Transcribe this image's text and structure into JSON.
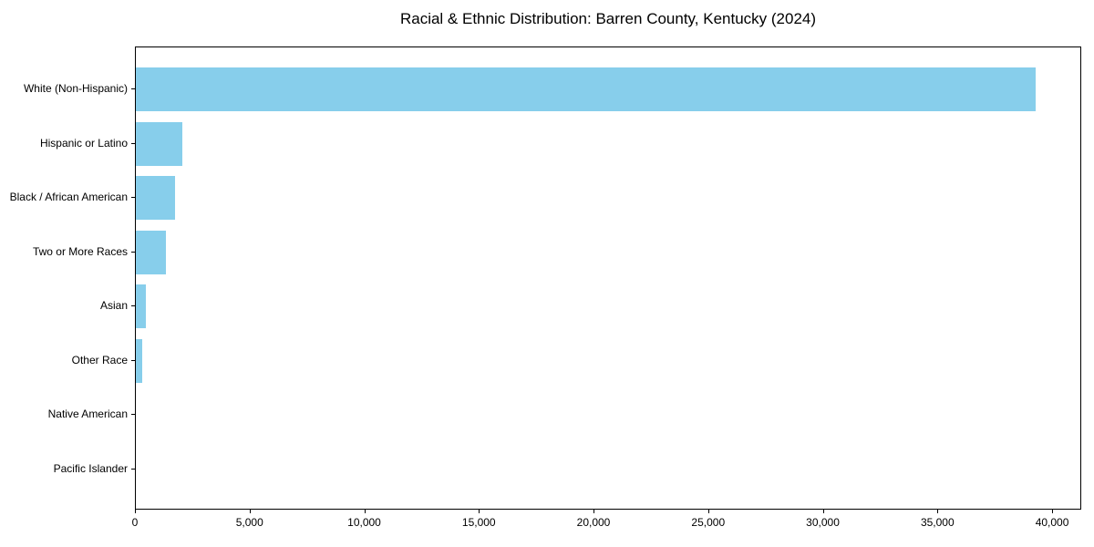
{
  "chart_data": {
    "type": "bar",
    "orientation": "horizontal",
    "title": "Racial & Ethnic Distribution: Barren County, Kentucky (2024)",
    "categories": [
      "White (Non-Hispanic)",
      "Hispanic or Latino",
      "Black / African American",
      "Two or More Races",
      "Asian",
      "Other Race",
      "Native American",
      "Pacific Islander"
    ],
    "values": [
      39250,
      2020,
      1720,
      1310,
      450,
      290,
      0,
      0
    ],
    "xlabel": "",
    "ylabel": "",
    "xlim": [
      0,
      41270
    ],
    "xticks": [
      0,
      5000,
      10000,
      15000,
      20000,
      25000,
      30000,
      35000,
      40000
    ],
    "xtick_labels": [
      "0",
      "5,000",
      "10,000",
      "15,000",
      "20,000",
      "25,000",
      "30,000",
      "35,000",
      "40,000"
    ],
    "bar_color": "#87CEEB",
    "axis_color": "#000000",
    "background": "#ffffff",
    "grid": false,
    "legend": null
  }
}
